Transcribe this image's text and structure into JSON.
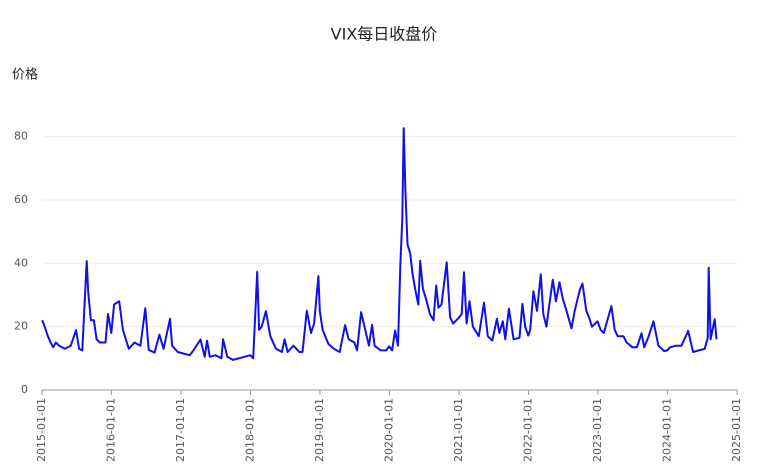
{
  "chart_data": {
    "type": "line",
    "title": "VIX每日收盘价",
    "y_label": "价格",
    "xlim": [
      "2015-01-01",
      "2025-01-01"
    ],
    "xticks": [
      "2015-01-01",
      "2016-01-01",
      "2017-01-01",
      "2018-01-01",
      "2019-01-01",
      "2020-01-01",
      "2021-01-01",
      "2022-01-01",
      "2023-01-01",
      "2024-01-01",
      "2025-01-01"
    ],
    "ylim": [
      0,
      90
    ],
    "yticks": [
      0,
      20,
      40,
      60,
      80
    ],
    "grid": true,
    "series": [
      {
        "name": "VIX",
        "color": "#1010e8",
        "x": [
          "2015-01-02",
          "2015-01-15",
          "2015-02-01",
          "2015-02-15",
          "2015-03-01",
          "2015-03-15",
          "2015-04-01",
          "2015-05-01",
          "2015-06-01",
          "2015-06-29",
          "2015-07-15",
          "2015-08-01",
          "2015-08-24",
          "2015-09-01",
          "2015-09-15",
          "2015-10-01",
          "2015-10-15",
          "2015-11-01",
          "2015-12-01",
          "2015-12-14",
          "2015-12-31",
          "2016-01-15",
          "2016-02-11",
          "2016-03-01",
          "2016-04-01",
          "2016-05-01",
          "2016-06-01",
          "2016-06-27",
          "2016-07-15",
          "2016-08-15",
          "2016-09-09",
          "2016-10-01",
          "2016-11-04",
          "2016-11-15",
          "2016-12-15",
          "2017-01-15",
          "2017-02-15",
          "2017-03-01",
          "2017-04-13",
          "2017-05-05",
          "2017-05-17",
          "2017-06-01",
          "2017-07-01",
          "2017-08-01",
          "2017-08-10",
          "2017-09-01",
          "2017-10-01",
          "2017-11-01",
          "2017-12-01",
          "2017-12-31",
          "2018-01-15",
          "2018-02-05",
          "2018-02-15",
          "2018-03-01",
          "2018-03-23",
          "2018-04-15",
          "2018-05-15",
          "2018-06-15",
          "2018-06-29",
          "2018-07-15",
          "2018-08-15",
          "2018-09-15",
          "2018-10-01",
          "2018-10-24",
          "2018-11-15",
          "2018-12-01",
          "2018-12-24",
          "2018-12-31",
          "2019-01-15",
          "2019-02-15",
          "2019-03-15",
          "2019-04-15",
          "2019-05-13",
          "2019-06-01",
          "2019-07-01",
          "2019-07-15",
          "2019-08-05",
          "2019-08-15",
          "2019-09-15",
          "2019-10-02",
          "2019-10-15",
          "2019-11-15",
          "2019-12-15",
          "2019-12-31",
          "2020-01-15",
          "2020-01-31",
          "2020-02-15",
          "2020-02-28",
          "2020-03-09",
          "2020-03-16",
          "2020-03-25",
          "2020-04-05",
          "2020-04-20",
          "2020-05-01",
          "2020-05-15",
          "2020-06-01",
          "2020-06-11",
          "2020-06-25",
          "2020-07-15",
          "2020-08-01",
          "2020-08-20",
          "2020-09-03",
          "2020-09-15",
          "2020-10-01",
          "2020-10-28",
          "2020-11-15",
          "2020-12-01",
          "2020-12-31",
          "2021-01-15",
          "2021-01-27",
          "2021-02-10",
          "2021-02-25",
          "2021-03-15",
          "2021-04-15",
          "2021-05-12",
          "2021-06-01",
          "2021-06-25",
          "2021-07-19",
          "2021-08-01",
          "2021-08-19",
          "2021-09-01",
          "2021-09-20",
          "2021-10-15",
          "2021-11-15",
          "2021-11-30",
          "2021-12-15",
          "2021-12-31",
          "2022-01-10",
          "2022-01-27",
          "2022-02-15",
          "2022-03-07",
          "2022-03-20",
          "2022-04-05",
          "2022-04-25",
          "2022-05-09",
          "2022-05-25",
          "2022-06-13",
          "2022-07-01",
          "2022-07-15",
          "2022-08-15",
          "2022-09-01",
          "2022-09-29",
          "2022-10-12",
          "2022-11-01",
          "2022-11-15",
          "2022-12-01",
          "2022-12-30",
          "2023-01-15",
          "2023-02-01",
          "2023-03-13",
          "2023-03-30",
          "2023-04-15",
          "2023-05-15",
          "2023-06-01",
          "2023-07-01",
          "2023-07-25",
          "2023-08-18",
          "2023-09-01",
          "2023-09-25",
          "2023-10-20",
          "2023-11-15",
          "2023-12-15",
          "2023-12-31",
          "2024-01-15",
          "2024-02-15",
          "2024-03-15",
          "2024-04-15",
          "2024-04-19",
          "2024-05-15",
          "2024-06-15",
          "2024-07-15",
          "2024-07-31",
          "2024-08-05",
          "2024-08-15",
          "2024-09-06",
          "2024-09-15"
        ],
        "values": [
          22,
          20,
          17,
          15,
          13.5,
          15,
          14,
          13,
          14,
          18.9,
          13,
          12.5,
          40.7,
          31,
          22,
          22,
          16,
          15,
          15,
          24,
          18,
          27,
          28,
          19,
          13,
          15,
          14,
          25.8,
          12.7,
          11.8,
          17.5,
          13,
          22.5,
          14,
          12,
          11.5,
          11,
          12,
          15.9,
          10.5,
          15.6,
          10.5,
          11,
          10,
          16,
          10.5,
          9.5,
          10,
          10.5,
          11,
          10,
          37.3,
          19,
          20,
          24.9,
          17,
          13,
          12,
          16,
          12,
          14,
          12,
          12,
          25,
          18,
          21,
          36,
          25,
          19,
          14.5,
          13,
          12,
          20.5,
          16,
          15,
          12.5,
          24.6,
          22,
          14,
          20.6,
          14,
          12.5,
          12.5,
          13.8,
          12.5,
          18.8,
          14,
          40,
          54,
          82.7,
          63,
          46,
          43,
          37,
          32,
          27,
          40.8,
          32,
          28,
          24,
          22,
          33,
          26,
          27,
          40.3,
          23,
          21,
          22.8,
          24,
          37.2,
          21,
          28,
          20,
          17,
          27.6,
          17,
          15.6,
          22.5,
          18,
          21.7,
          16,
          25.7,
          16,
          16.5,
          27.2,
          20,
          17.2,
          19,
          31.2,
          25,
          36.5,
          24,
          20,
          29,
          34.8,
          28,
          34,
          28.7,
          26,
          19.5,
          25,
          31.8,
          33.6,
          25,
          23,
          20,
          21.7,
          19,
          18,
          26.5,
          19,
          17,
          17,
          15,
          13.5,
          13.5,
          17.9,
          13.5,
          17,
          21.7,
          14,
          12.3,
          12.5,
          13.5,
          14,
          14,
          18,
          18.7,
          12,
          12.5,
          13,
          16.4,
          38.6,
          16,
          22.4,
          16
        ]
      }
    ]
  }
}
